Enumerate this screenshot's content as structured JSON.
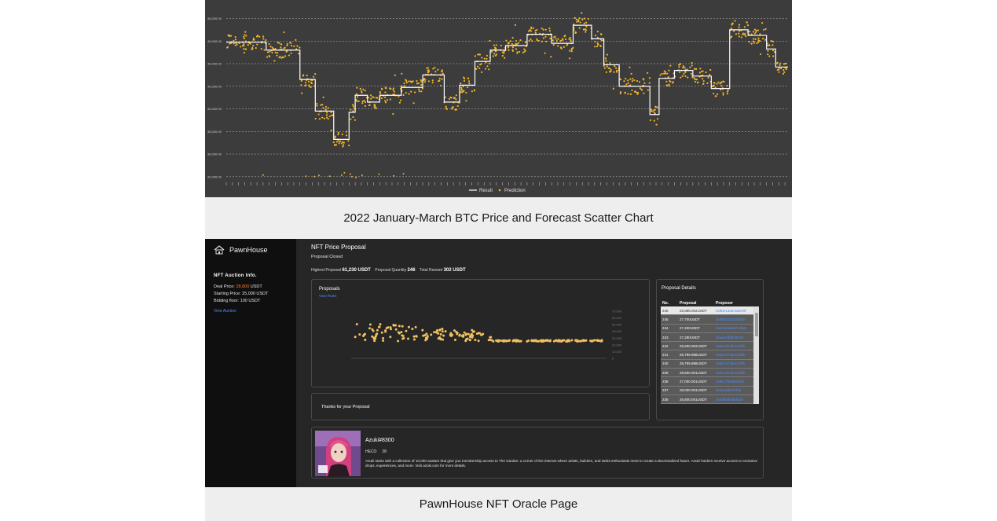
{
  "captions": {
    "top": "2022 January-March BTC Price and Forecast Scatter Chart",
    "bottom": "PawnHouse NFT Oracle Page"
  },
  "chart_data": [
    {
      "type": "scatter",
      "title": "",
      "xlabel": "",
      "ylabel": "",
      "y_tick_labels": [
        "34,000.00",
        "36,000.00",
        "38,000.00",
        "40,000.00",
        "42,000.00",
        "44,000.00",
        "46,000.00",
        "48,000.00"
      ],
      "ylim": [
        33500,
        48800
      ],
      "grid": true,
      "legend_position": "bottom",
      "series": [
        {
          "name": "Result",
          "style": "step-line",
          "color": "#ffffff",
          "steps": [
            {
              "x": [
                0,
                13
              ],
              "y": 45900
            },
            {
              "x": [
                13,
                24
              ],
              "y": 45200
            },
            {
              "x": [
                24,
                29
              ],
              "y": 42600
            },
            {
              "x": [
                29,
                35
              ],
              "y": 39800
            },
            {
              "x": [
                35,
                40
              ],
              "y": 37300
            },
            {
              "x": [
                40,
                42
              ],
              "y": 39700
            },
            {
              "x": [
                42,
                46
              ],
              "y": 41200
            },
            {
              "x": [
                46,
                50
              ],
              "y": 40600
            },
            {
              "x": [
                50,
                57
              ],
              "y": 41200
            },
            {
              "x": [
                57,
                64
              ],
              "y": 41900
            },
            {
              "x": [
                64,
                71
              ],
              "y": 43000
            },
            {
              "x": [
                71,
                76
              ],
              "y": 40600
            },
            {
              "x": [
                76,
                81
              ],
              "y": 42100
            },
            {
              "x": [
                81,
                86
              ],
              "y": 44200
            },
            {
              "x": [
                86,
                91
              ],
              "y": 45200
            },
            {
              "x": [
                91,
                98
              ],
              "y": 45600
            },
            {
              "x": [
                98,
                106
              ],
              "y": 46600
            },
            {
              "x": [
                106,
                113
              ],
              "y": 45800
            },
            {
              "x": [
                113,
                119
              ],
              "y": 47400
            },
            {
              "x": [
                119,
                123
              ],
              "y": 46200
            },
            {
              "x": [
                123,
                128
              ],
              "y": 43900
            },
            {
              "x": [
                128,
                138
              ],
              "y": 42000
            },
            {
              "x": [
                138,
                141
              ],
              "y": 39500
            },
            {
              "x": [
                141,
                146
              ],
              "y": 42700
            },
            {
              "x": [
                146,
                152
              ],
              "y": 43400
            },
            {
              "x": [
                152,
                158
              ],
              "y": 42900
            },
            {
              "x": [
                158,
                164
              ],
              "y": 41800
            },
            {
              "x": [
                164,
                170
              ],
              "y": 47000
            },
            {
              "x": [
                170,
                176
              ],
              "y": 46500
            },
            {
              "x": [
                176,
                179
              ],
              "y": 45300
            },
            {
              "x": [
                179,
                183
              ],
              "y": 43700
            }
          ]
        },
        {
          "name": "Prediction",
          "style": "points",
          "color": "#f0b429"
        }
      ],
      "legend": [
        "Result",
        "Prediction"
      ]
    },
    {
      "type": "scatter",
      "title": "Proposals",
      "y_tick_labels": [
        "70,000",
        "60,000",
        "50,000",
        "40,000",
        "30,000",
        "20,000",
        "10,000",
        "0"
      ],
      "ylim": [
        0,
        70000
      ],
      "series": [
        {
          "name": "",
          "color": "#f0c060"
        }
      ],
      "note": "approx. 246 proposal points, mostly between 25,000 and 61,230 USDT"
    }
  ],
  "app": {
    "brand": "PawnHouse",
    "sidebar": {
      "auction_title": "NFT Auction Info.",
      "deal_label": "Deal Price:",
      "deal_value": "28,800",
      "deal_unit": "USDT",
      "starting_price": "Starting Price: 25,000 USDT",
      "bidding_floor": "Bidding floor: 100 USDT",
      "view_auction": "View Auction"
    },
    "main": {
      "title": "NFT Price Proposal",
      "status": "Proposal Closed",
      "highest_label": "Highest Proposal",
      "highest_value": "61,230 USDT",
      "quantity_label": "Proposal Quantity",
      "quantity_value": "246",
      "reward_label": "Total Reward",
      "reward_value": "302 USDT"
    },
    "proposals_card": {
      "title": "Proposals",
      "link": "View Rules"
    },
    "thanks": "Thanks for your Proposal",
    "details": {
      "title": "Proposal Details",
      "headers": [
        "No.",
        "Proposal",
        "Proposer"
      ],
      "rows": [
        {
          "no": "246",
          "proposal": "28,888.002USDT",
          "proposer": "0x8b213a5c6d2e9f"
        },
        {
          "no": "245",
          "proposal": "27,700USDT",
          "proposer": "0x2EE3f1522a0be"
        },
        {
          "no": "244",
          "proposal": "27,400USDT",
          "proposer": "0x4c3a4a5b7e3fa8"
        },
        {
          "no": "243",
          "proposal": "27,290USDT",
          "proposer": "0xaae1f6fb46b79"
        },
        {
          "no": "242",
          "proposal": "28,800.002USDT",
          "proposer": "0x8a7d73d4c2f4fb"
        },
        {
          "no": "241",
          "proposal": "28,799.998USDT",
          "proposer": "0x8a7d73d4c2f4fb"
        },
        {
          "no": "240",
          "proposal": "28,799.998USDT",
          "proposer": "0x8a7d73d4c2f4fb"
        },
        {
          "no": "239",
          "proposal": "28,800.001USDT",
          "proposer": "0x8a7d73d4c2f4fb"
        },
        {
          "no": "238",
          "proposal": "27,000.001USDT",
          "proposer": "0x8bc7f0e9d4dcf1"
        },
        {
          "no": "237",
          "proposal": "28,000.001USDT",
          "proposer": "0x3a4d6b1f4f2e"
        },
        {
          "no": "236",
          "proposal": "26,800.001USDT",
          "proposer": "0x3d88dfcb6f02d"
        }
      ]
    },
    "nft": {
      "name": "Azuki#8300",
      "chain": "HECO",
      "token_count": "28",
      "description": "Azuki starts with a collection of 10,000 avatars that give you membership access to The Garden: a corner of the internet where artists, builders, and web3 enthusiasts meet to create a decentralized future. Azuki holders receive access to exclusive drops, experiences, and more. Visit azuki.com for more details."
    }
  }
}
